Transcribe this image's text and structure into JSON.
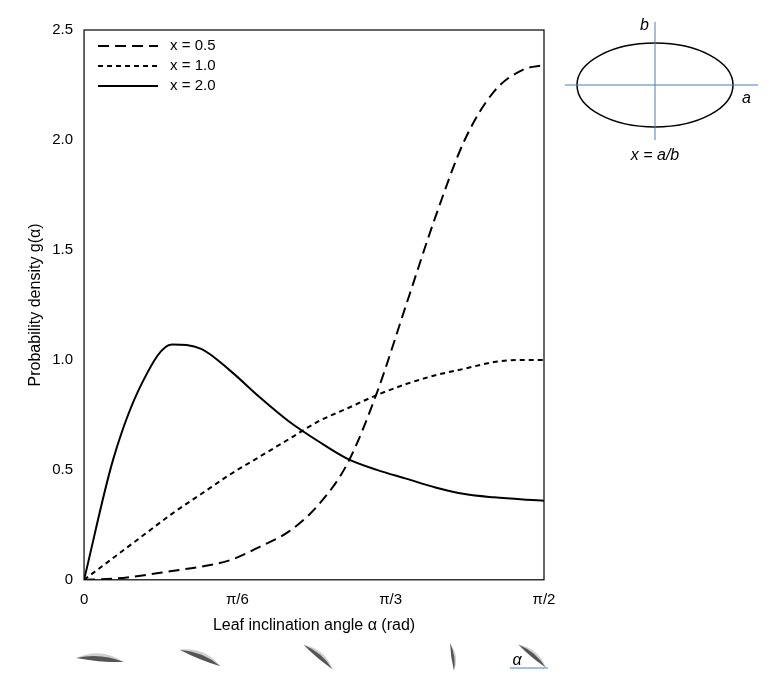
{
  "chart_data": {
    "type": "line",
    "x_label": "Leaf inclination angle α (rad)",
    "y_label": "Probability density g(α)",
    "x": [
      0,
      0.1,
      0.2,
      0.3,
      0.4,
      0.5,
      0.6,
      0.7,
      0.8,
      0.9,
      1.0,
      1.1,
      1.2,
      1.3,
      1.4,
      1.5,
      1.5708
    ],
    "series": [
      {
        "name": "x = 0.5",
        "color": "#000000",
        "line_style": "dashed",
        "values": [
          0,
          0.005,
          0.02,
          0.04,
          0.06,
          0.09,
          0.15,
          0.22,
          0.34,
          0.53,
          0.85,
          1.25,
          1.65,
          2.0,
          2.22,
          2.32,
          2.34
        ]
      },
      {
        "name": "x = 1.0",
        "color": "#000000",
        "line_style": "short dashed",
        "values": [
          0,
          0.1,
          0.2,
          0.3,
          0.39,
          0.48,
          0.56,
          0.64,
          0.72,
          0.78,
          0.84,
          0.89,
          0.93,
          0.96,
          0.99,
          1.0,
          1.0
        ]
      },
      {
        "name": "x = 2.0",
        "color": "#000000",
        "line_style": "solid",
        "values": [
          0,
          0.55,
          0.9,
          1.07,
          1.05,
          0.95,
          0.83,
          0.72,
          0.63,
          0.55,
          0.5,
          0.46,
          0.42,
          0.39,
          0.375,
          0.365,
          0.36
        ]
      }
    ],
    "xlim": [
      0,
      1.5708
    ],
    "xticks": [
      0,
      {
        "value": 0.5236,
        "label": "π/6"
      },
      {
        "value": 1.0472,
        "label": "π/3"
      },
      {
        "value": 1.5708,
        "label": "π/2"
      }
    ],
    "ylim": [
      0,
      2.5
    ],
    "yticks": [
      0,
      0.5,
      {
        "value": 1,
        "label": "1.0"
      },
      {
        "value": 1.5,
        "label": "1.5"
      },
      {
        "value": 2,
        "label": "2.0"
      },
      2.5
    ],
    "grid": false,
    "legend": "upper left",
    "annotations": [
      "b",
      "a",
      "x = a/b",
      "α"
    ]
  }
}
